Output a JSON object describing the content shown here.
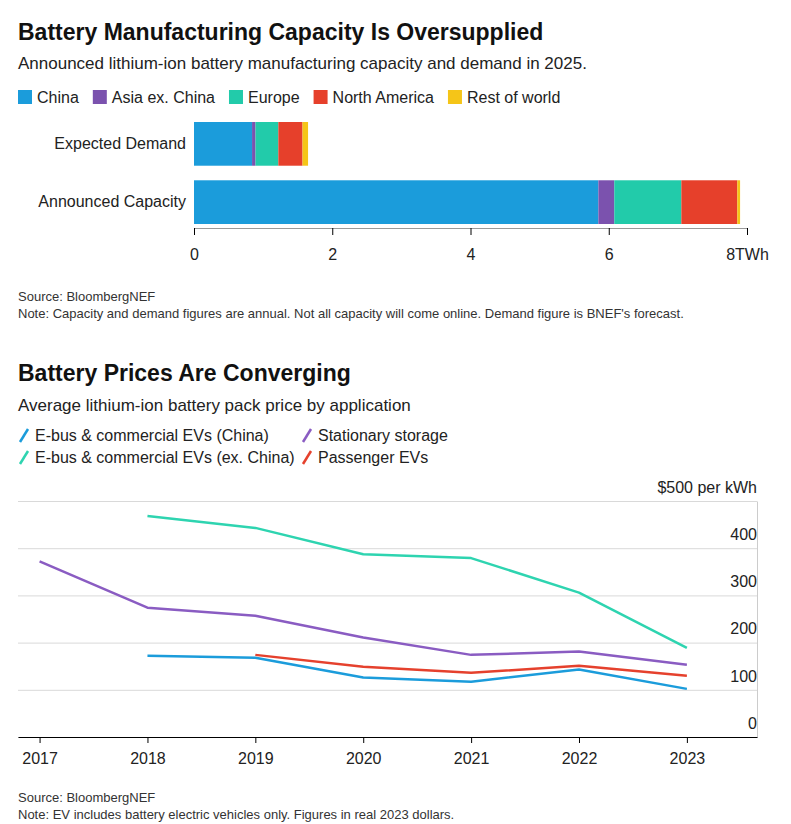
{
  "chart_data": [
    {
      "type": "bar",
      "title": "Battery Manufacturing Capacity Is Oversupplied",
      "subtitle": "Announced lithium-ion battery manufacturing capacity and demand in 2025.",
      "source": "Source: BloombergNEF",
      "note": "Note: Capacity and demand figures are annual. Not all capacity will come online. Demand figure is BNEF's forecast.",
      "orientation": "horizontal",
      "stacked": true,
      "legend": "top",
      "categories": [
        "Expected Demand",
        "Announced Capacity"
      ],
      "series": [
        {
          "name": "China",
          "color": "#1b9cdb",
          "values": [
            0.84,
            5.85
          ]
        },
        {
          "name": "Asia ex. China",
          "color": "#7b52ae",
          "values": [
            0.05,
            0.23
          ]
        },
        {
          "name": "Europe",
          "color": "#22cbaa",
          "values": [
            0.33,
            0.97
          ]
        },
        {
          "name": "North America",
          "color": "#e6402b",
          "values": [
            0.35,
            0.81
          ]
        },
        {
          "name": "Rest of world",
          "color": "#f5c518",
          "values": [
            0.08,
            0.04
          ]
        }
      ],
      "xlim": [
        0,
        8
      ],
      "xticks": [
        0,
        2,
        4,
        6,
        {
          "value": 8,
          "label": "8TWh"
        }
      ]
    },
    {
      "type": "line",
      "title": "Battery Prices Are Converging",
      "subtitle": "Average lithium-ion battery pack price by application",
      "source": "Source: BloombergNEF",
      "note": "Note: EV includes battery electric vehicles only. Figures in real 2023 dollars.",
      "legend": "top",
      "grid": true,
      "x": [
        2017,
        2018,
        2019,
        2020,
        2021,
        2022,
        2023
      ],
      "series": [
        {
          "name": "E-bus & commercial EVs (China)",
          "color": "#1b9cdb",
          "values": [
            null,
            172,
            168,
            126,
            117,
            143,
            102
          ]
        },
        {
          "name": "Stationary storage",
          "color": "#8a5cc2",
          "values": [
            372,
            274,
            257,
            211,
            174,
            181,
            153
          ]
        },
        {
          "name": "E-bus & commercial EVs (ex. China)",
          "color": "#2ed4b0",
          "values": [
            null,
            468,
            443,
            387,
            379,
            306,
            189
          ]
        },
        {
          "name": "Passenger EVs",
          "color": "#e5412d",
          "values": [
            null,
            null,
            174,
            149,
            136,
            151,
            130
          ]
        }
      ],
      "xlim": [
        2016.8,
        2023.65
      ],
      "xticks": [
        2017,
        2018,
        2019,
        2020,
        2021,
        2022,
        2023
      ],
      "ylim": [
        0,
        500
      ],
      "yticks": [
        0,
        100,
        200,
        300,
        400,
        {
          "value": 500,
          "label": "$500 per kWh"
        }
      ]
    }
  ]
}
